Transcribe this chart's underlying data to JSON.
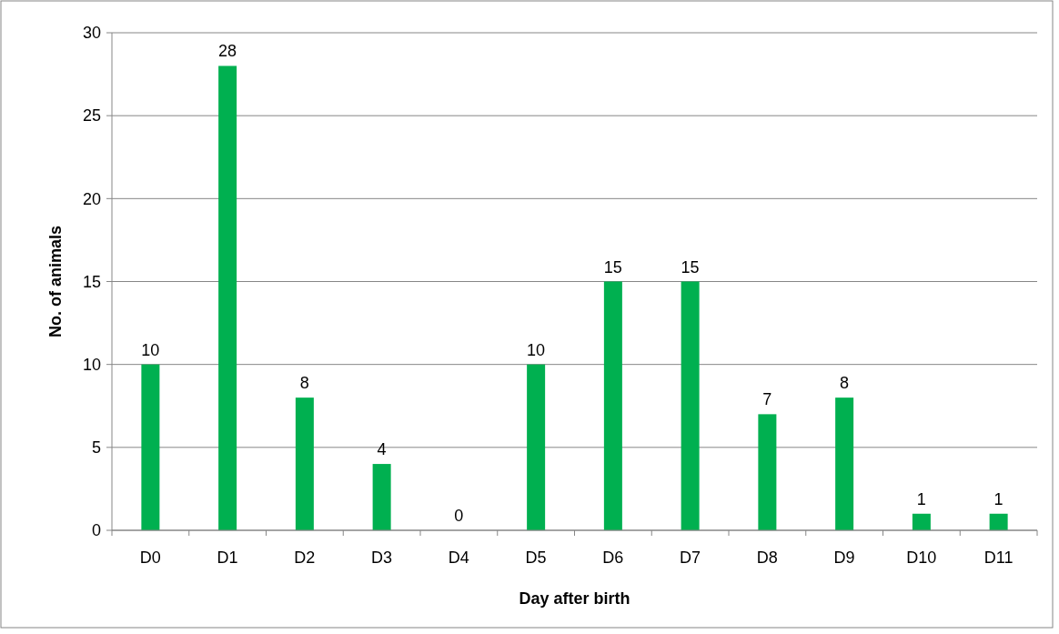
{
  "chart_data": {
    "type": "bar",
    "xlabel": "Day after birth",
    "ylabel": "No. of animals",
    "categories": [
      "D0",
      "D1",
      "D2",
      "D3",
      "D4",
      "D5",
      "D6",
      "D7",
      "D8",
      "D9",
      "D10",
      "D11"
    ],
    "values": [
      10,
      28,
      8,
      4,
      0,
      10,
      15,
      15,
      7,
      8,
      1,
      1
    ],
    "color": "#00b050",
    "ylim": [
      0,
      30
    ],
    "yticks": [
      0,
      5,
      10,
      15,
      20,
      25,
      30
    ],
    "grid": "y",
    "data_labels": true
  }
}
